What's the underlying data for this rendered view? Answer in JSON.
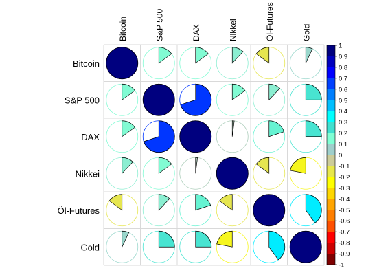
{
  "chart_data": {
    "type": "heatmap",
    "style": "corrplot-pie",
    "variables": [
      "Bitcoin",
      "S&P 500",
      "DAX",
      "Nikkei",
      "Öl-Futures",
      "Gold"
    ],
    "matrix": [
      [
        1.0,
        0.15,
        0.15,
        0.12,
        -0.15,
        0.07
      ],
      [
        0.15,
        1.0,
        0.7,
        0.15,
        0.12,
        0.25
      ],
      [
        0.15,
        0.7,
        1.0,
        0.02,
        0.2,
        0.25
      ],
      [
        0.12,
        0.15,
        0.02,
        1.0,
        -0.15,
        -0.22
      ],
      [
        -0.15,
        0.12,
        0.2,
        -0.15,
        1.0,
        0.4
      ],
      [
        0.07,
        0.25,
        0.25,
        -0.22,
        0.4,
        1.0
      ]
    ],
    "colorbar": {
      "min": -1,
      "max": 1,
      "ticks": [
        "1",
        "0.9",
        "0.8",
        "0.7",
        "0.6",
        "0.5",
        "0.4",
        "0.3",
        "0.2",
        "0.1",
        "0",
        "-0.1",
        "-0.2",
        "-0.3",
        "-0.4",
        "-0.5",
        "-0.6",
        "-0.7",
        "-0.8",
        "-0.9",
        "-1"
      ],
      "colors_high_to_low": [
        "#00007F",
        "#0000BE",
        "#0000FF",
        "#0040FF",
        "#007FFF",
        "#00BFFF",
        "#00FFFF",
        "#40E0D0",
        "#7FFFD4",
        "#9FCFCB",
        "#CCCC99",
        "#E8E84A",
        "#FFFF00",
        "#FFD700",
        "#FFA500",
        "#FF7F00",
        "#FF5000",
        "#FF0000",
        "#CC0000",
        "#7F0000"
      ]
    },
    "grid": true,
    "legend_position": "right"
  }
}
